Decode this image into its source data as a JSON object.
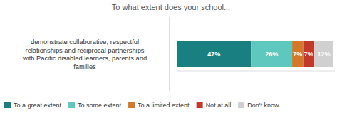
{
  "chart_data": {
    "type": "bar",
    "title": "To what extent does your school...",
    "orientation": "horizontal",
    "stacked": true,
    "categories": [
      "demonstrate collaborative, respectful\nrelationships and reciprocal partnerships\nwith Pacific disabled learners, parents and\nfamilies"
    ],
    "series": [
      {
        "name": "To a great extent",
        "color": "#1a7f80",
        "values": [
          47
        ],
        "value_labels": [
          "47%"
        ]
      },
      {
        "name": "To some extent",
        "color": "#5ec8be",
        "values": [
          26
        ],
        "value_labels": [
          "26%"
        ]
      },
      {
        "name": "To a limited extent",
        "color": "#d4782a",
        "values": [
          7
        ],
        "value_labels": [
          "7%"
        ]
      },
      {
        "name": "Not at all",
        "color": "#c0392b",
        "values": [
          7
        ],
        "value_labels": [
          "7%"
        ]
      },
      {
        "name": "Don't know",
        "color": "#d0d0d0",
        "values": [
          12
        ],
        "value_labels": [
          "12%"
        ]
      }
    ],
    "xlim": [
      0,
      100
    ],
    "data_labels": true,
    "tick_labels": "y",
    "grid": false,
    "legend": "lower left"
  }
}
